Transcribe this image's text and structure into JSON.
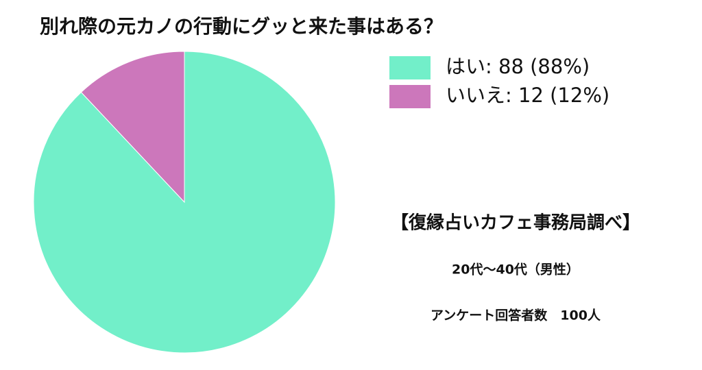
{
  "chart_data": {
    "type": "pie",
    "title": "別れ際の元カノの行動にグッと来た事はある？",
    "labels": [
      "はい: 88 (88%)",
      "いいえ: 12 (12%)"
    ],
    "values": [
      88,
      12
    ],
    "colors": [
      "#72efc9",
      "#cc77bb"
    ],
    "notes": [
      "【復縁占いカフェ事務局調べ】",
      "20代〜40代（男性）",
      "アンケート回答者数　100人"
    ]
  }
}
